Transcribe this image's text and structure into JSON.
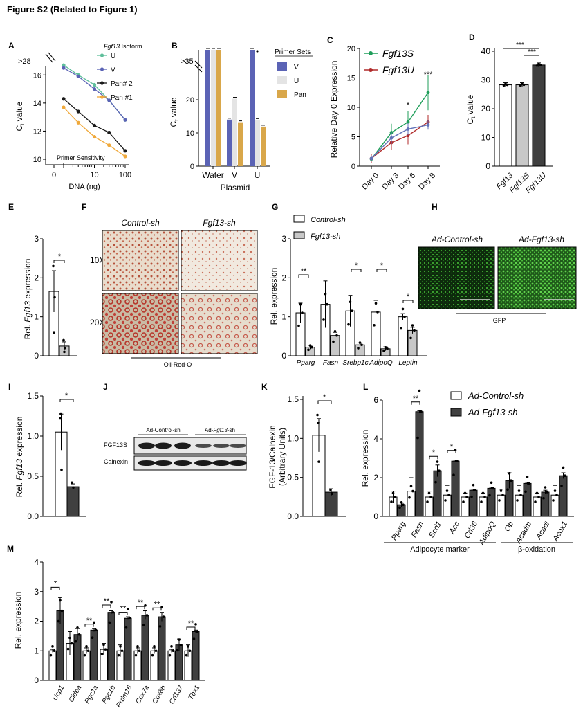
{
  "figure_title": "Figure S2 (Related to Figure 1)",
  "panels": {
    "A": {
      "letter": "A",
      "legend_title_italic": "Fgf13",
      "legend_title_rest": " Isoform",
      "ylabel_main": "C",
      "ylabel_sub": "t",
      "ylabel_rest": " value",
      "xlabel": "DNA (ng)",
      "annotation": "Primer Sensitivity",
      "break_label": ">28"
    },
    "B": {
      "letter": "B",
      "legend_title": "Primer Sets",
      "xlabel": "Plasmid",
      "ylabel_main": "C",
      "ylabel_sub": "t",
      "ylabel_rest": " value",
      "break_label": ">35"
    },
    "C": {
      "letter": "C",
      "ylabel": "Relative Day 0 Expression",
      "sig": [
        "*",
        "***"
      ]
    },
    "D": {
      "letter": "D",
      "ylabel_main": "C",
      "ylabel_sub": "t",
      "ylabel_rest": " value",
      "sig": [
        "***",
        "***"
      ]
    },
    "E": {
      "letter": "E",
      "ylabel_pre": "Rel. ",
      "ylabel_italic": "Fgf13",
      "ylabel_post": " expression",
      "sig": "*"
    },
    "F": {
      "letter": "F",
      "col1": "Control-sh",
      "col2": "Fgf13-sh",
      "row1": "10X",
      "row2": "20X",
      "caption": "Oil-Red-O"
    },
    "G": {
      "letter": "G",
      "ylabel": "Rel. expression",
      "sig": [
        "**",
        "*",
        "*",
        "*"
      ]
    },
    "H": {
      "letter": "H",
      "col1": "Ad-Control-sh",
      "col2": "Ad-Fgf13-sh",
      "caption": "GFP"
    },
    "I": {
      "letter": "I",
      "ylabel_pre": "Rel. ",
      "ylabel_italic": "Fgf13",
      "ylabel_post": " expression",
      "sig": "*"
    },
    "J": {
      "letter": "J",
      "group1": "Ad-Control-sh",
      "group2_pre": "Ad-",
      "group2_italic": "Fgf13",
      "group2_post": "-sh",
      "band1": "FGF13S",
      "band2": "Calnexin"
    },
    "K": {
      "letter": "K",
      "ylabel1": "FGF-13/Calnexin",
      "ylabel2": "(Arbitrary Units)",
      "sig": "*"
    },
    "L": {
      "letter": "L",
      "ylabel": "Rel. expression",
      "group1": "Adipocyte marker",
      "group2": "β-oxidation",
      "sig": [
        "**",
        "*",
        "*"
      ]
    },
    "M": {
      "letter": "M",
      "ylabel": "Rel. expression",
      "sig": [
        "*",
        "**",
        "**",
        "**",
        "**",
        "**",
        "**",
        "*"
      ]
    }
  },
  "chart_data": [
    {
      "panel": "A",
      "type": "line",
      "xlabel": "DNA (ng)",
      "ylabel": "Ct value",
      "x": [
        0.5,
        1,
        10,
        100
      ],
      "xticks": [
        "0",
        "10",
        "100"
      ],
      "yticks": [
        10,
        12,
        14,
        16
      ],
      "ylim": [
        10,
        17
      ],
      "legend_title": "Fgf13 Isoform",
      "series": [
        {
          "name": "U",
          "color": "#5fbf9b",
          "x": [
            1,
            3,
            10,
            30,
            100
          ],
          "values": [
            16.7,
            16.0,
            15.3,
            14.2,
            12.8
          ]
        },
        {
          "name": "V",
          "color": "#5b63b5",
          "x": [
            1,
            3,
            10,
            30,
            100
          ],
          "values": [
            16.5,
            15.9,
            15.0,
            14.2,
            12.8
          ]
        },
        {
          "name": "Pan# 2",
          "color": "#1a1a1a",
          "x": [
            1,
            3,
            10,
            30,
            100
          ],
          "values": [
            14.3,
            13.4,
            12.4,
            11.9,
            10.6
          ]
        },
        {
          "name": "Pan #1",
          "color": "#f0a93b",
          "x": [
            1,
            3,
            10,
            30,
            100
          ],
          "values": [
            13.7,
            12.6,
            11.6,
            11.0,
            10.2
          ]
        }
      ]
    },
    {
      "panel": "B",
      "type": "bar",
      "xlabel": "Plasmid",
      "ylabel": "Ct value",
      "categories": [
        "Water",
        "V",
        "U"
      ],
      "yticks": [
        0,
        10,
        20
      ],
      "ylim": [
        0,
        35
      ],
      "legend_title": "Primer Sets",
      "series": [
        {
          "name": "V",
          "color": "#5b63b5",
          "values": [
            35,
            14,
            35
          ]
        },
        {
          "name": "U",
          "color": "#e4e4e4",
          "values": [
            35,
            20.3,
            13.9
          ]
        },
        {
          "name": "Pan",
          "color": "#d9a74a",
          "values": [
            35,
            13.2,
            11.9
          ]
        }
      ]
    },
    {
      "panel": "C",
      "type": "line",
      "ylabel": "Relative Day 0 Expression",
      "categories": [
        "Day 0",
        "Day 3",
        "Day 6",
        "Day 8"
      ],
      "yticks": [
        0,
        5,
        10,
        15,
        20
      ],
      "ylim": [
        0,
        20
      ],
      "series": [
        {
          "name": "Fgf13S",
          "color": "#1f9e5a",
          "values": [
            1.2,
            5.7,
            7.5,
            12.5
          ]
        },
        {
          "name": "Fgf13U",
          "color": "#b02a2a",
          "values": [
            1.3,
            4.0,
            5.2,
            7.5
          ]
        },
        {
          "name": "",
          "color": "#6272b8",
          "values": [
            1.3,
            4.8,
            6.3,
            7.0
          ]
        }
      ]
    },
    {
      "panel": "D",
      "type": "bar",
      "ylabel": "Ct value",
      "categories": [
        "Fgf13",
        "Fgf13S",
        "Fgf13U"
      ],
      "values": [
        28.3,
        28.3,
        35.2
      ],
      "colors": [
        "#ffffff",
        "#c8c8c8",
        "#404040"
      ],
      "yticks": [
        0,
        10,
        20,
        30,
        40
      ],
      "ylim": [
        0,
        40
      ]
    },
    {
      "panel": "E",
      "type": "bar",
      "ylabel": "Rel. Fgf13 expression",
      "categories": [
        "Control-sh",
        "Fgf13-sh"
      ],
      "values": [
        1.65,
        0.25
      ],
      "yticks": [
        0,
        1,
        2,
        3
      ],
      "ylim": [
        0,
        3
      ]
    },
    {
      "panel": "G",
      "type": "bar",
      "ylabel": "Rel. expression",
      "categories": [
        "Pparg",
        "Fasn",
        "Srebp1c",
        "AdipoQ",
        "Leptin"
      ],
      "yticks": [
        0,
        1,
        2,
        3
      ],
      "ylim": [
        0,
        3
      ],
      "series": [
        {
          "name": "Control-sh",
          "color": "#ffffff",
          "values": [
            1.1,
            1.32,
            1.15,
            1.12,
            1.0
          ]
        },
        {
          "name": "Fgf13-sh",
          "color": "#c8c8c8",
          "values": [
            0.22,
            0.52,
            0.28,
            0.18,
            0.65
          ]
        }
      ]
    },
    {
      "panel": "I",
      "type": "bar",
      "ylabel": "Rel. Fgf13 expression",
      "categories": [
        "Ad-Control-sh",
        "Ad-Fgf13-sh"
      ],
      "values": [
        1.05,
        0.37
      ],
      "yticks": [
        "0.0",
        "0.5",
        "1.0",
        "1.5"
      ],
      "ylim": [
        0,
        1.5
      ]
    },
    {
      "panel": "K",
      "type": "bar",
      "ylabel": "FGF-13/Calnexin (Arbitrary Units)",
      "categories": [
        "Ad-Control-sh",
        "Ad-Fgf13-sh"
      ],
      "values": [
        1.04,
        0.31
      ],
      "yticks": [
        "0.0",
        "0.5",
        "1.0",
        "1.5"
      ],
      "ylim": [
        0,
        1.5
      ]
    },
    {
      "panel": "L",
      "type": "bar",
      "ylabel": "Rel. expression",
      "categories": [
        "Pparg",
        "Fasn",
        "Scd1",
        "Acc",
        "Cd36",
        "AdipoQ",
        "Ob",
        "Acadm",
        "Acadl",
        "Acox1"
      ],
      "yticks": [
        0,
        2,
        4,
        6
      ],
      "ylim": [
        0,
        6
      ],
      "series": [
        {
          "name": "Ad-Control-sh",
          "color": "#ffffff",
          "values": [
            1.0,
            1.3,
            1.0,
            1.1,
            1.0,
            1.0,
            1.1,
            1.1,
            1.0,
            1.1
          ]
        },
        {
          "name": "Ad-Fgf13-sh",
          "color": "#404040",
          "values": [
            0.6,
            5.4,
            2.35,
            2.85,
            1.35,
            1.45,
            1.85,
            1.7,
            1.25,
            2.1
          ]
        }
      ]
    },
    {
      "panel": "M",
      "type": "bar",
      "ylabel": "Rel. expression",
      "categories": [
        "Ucp1",
        "Cidea",
        "Pgc1a",
        "Pgc1b",
        "Prdm16",
        "Cox7a",
        "Cox8b",
        "Cd137",
        "Tbx1"
      ],
      "yticks": [
        0,
        1,
        2,
        3,
        4
      ],
      "ylim": [
        0,
        4
      ],
      "series": [
        {
          "name": "Ad-Control-sh",
          "color": "#ffffff",
          "values": [
            1.0,
            1.25,
            1.0,
            1.05,
            1.0,
            1.0,
            1.0,
            1.0,
            1.0
          ]
        },
        {
          "name": "Ad-Fgf13-sh",
          "color": "#404040",
          "values": [
            2.35,
            1.55,
            1.7,
            2.3,
            2.1,
            2.2,
            2.15,
            1.2,
            1.65
          ]
        }
      ]
    }
  ]
}
